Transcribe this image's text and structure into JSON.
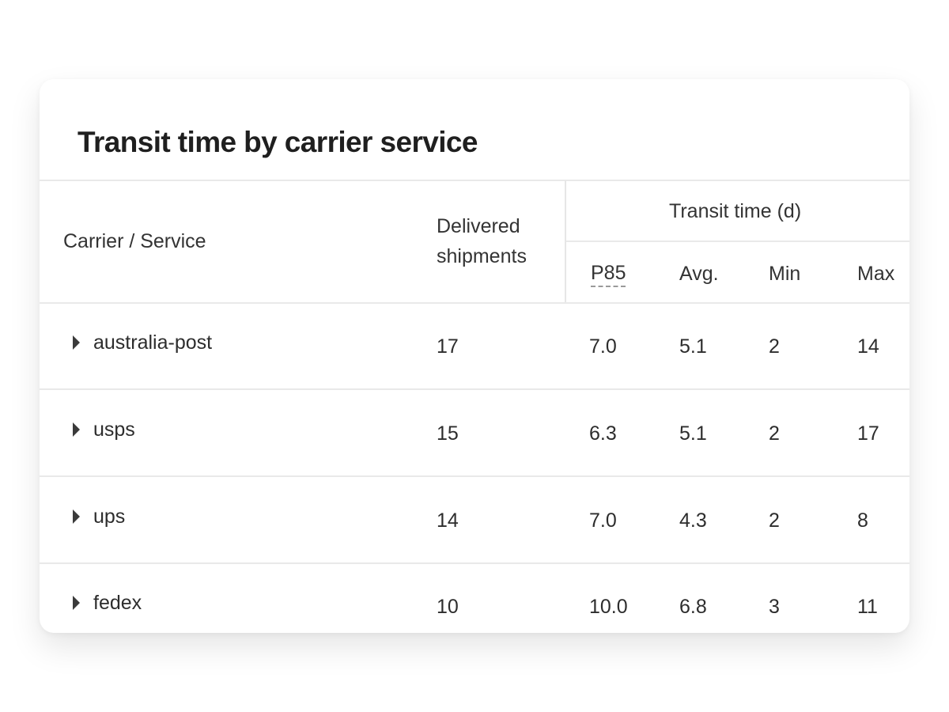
{
  "card": {
    "title": "Transit time by carrier service"
  },
  "table": {
    "headers": {
      "carrier": "Carrier / Service",
      "delivered_line1": "Delivered",
      "delivered_line2": "shipments",
      "transit_group": "Transit time (d)",
      "p85": "P85",
      "avg": "Avg.",
      "min": "Min",
      "max": "Max"
    },
    "rows": [
      {
        "carrier": "australia-post",
        "delivered": "17",
        "p85": "7.0",
        "avg": "5.1",
        "min": "2",
        "max": "14"
      },
      {
        "carrier": "usps",
        "delivered": "15",
        "p85": "6.3",
        "avg": "5.1",
        "min": "2",
        "max": "17"
      },
      {
        "carrier": "ups",
        "delivered": "14",
        "p85": "7.0",
        "avg": "4.3",
        "min": "2",
        "max": "8"
      },
      {
        "carrier": "fedex",
        "delivered": "10",
        "p85": "10.0",
        "avg": "6.8",
        "min": "3",
        "max": "11"
      }
    ]
  },
  "icons": {
    "expand": "caret-right-icon"
  }
}
